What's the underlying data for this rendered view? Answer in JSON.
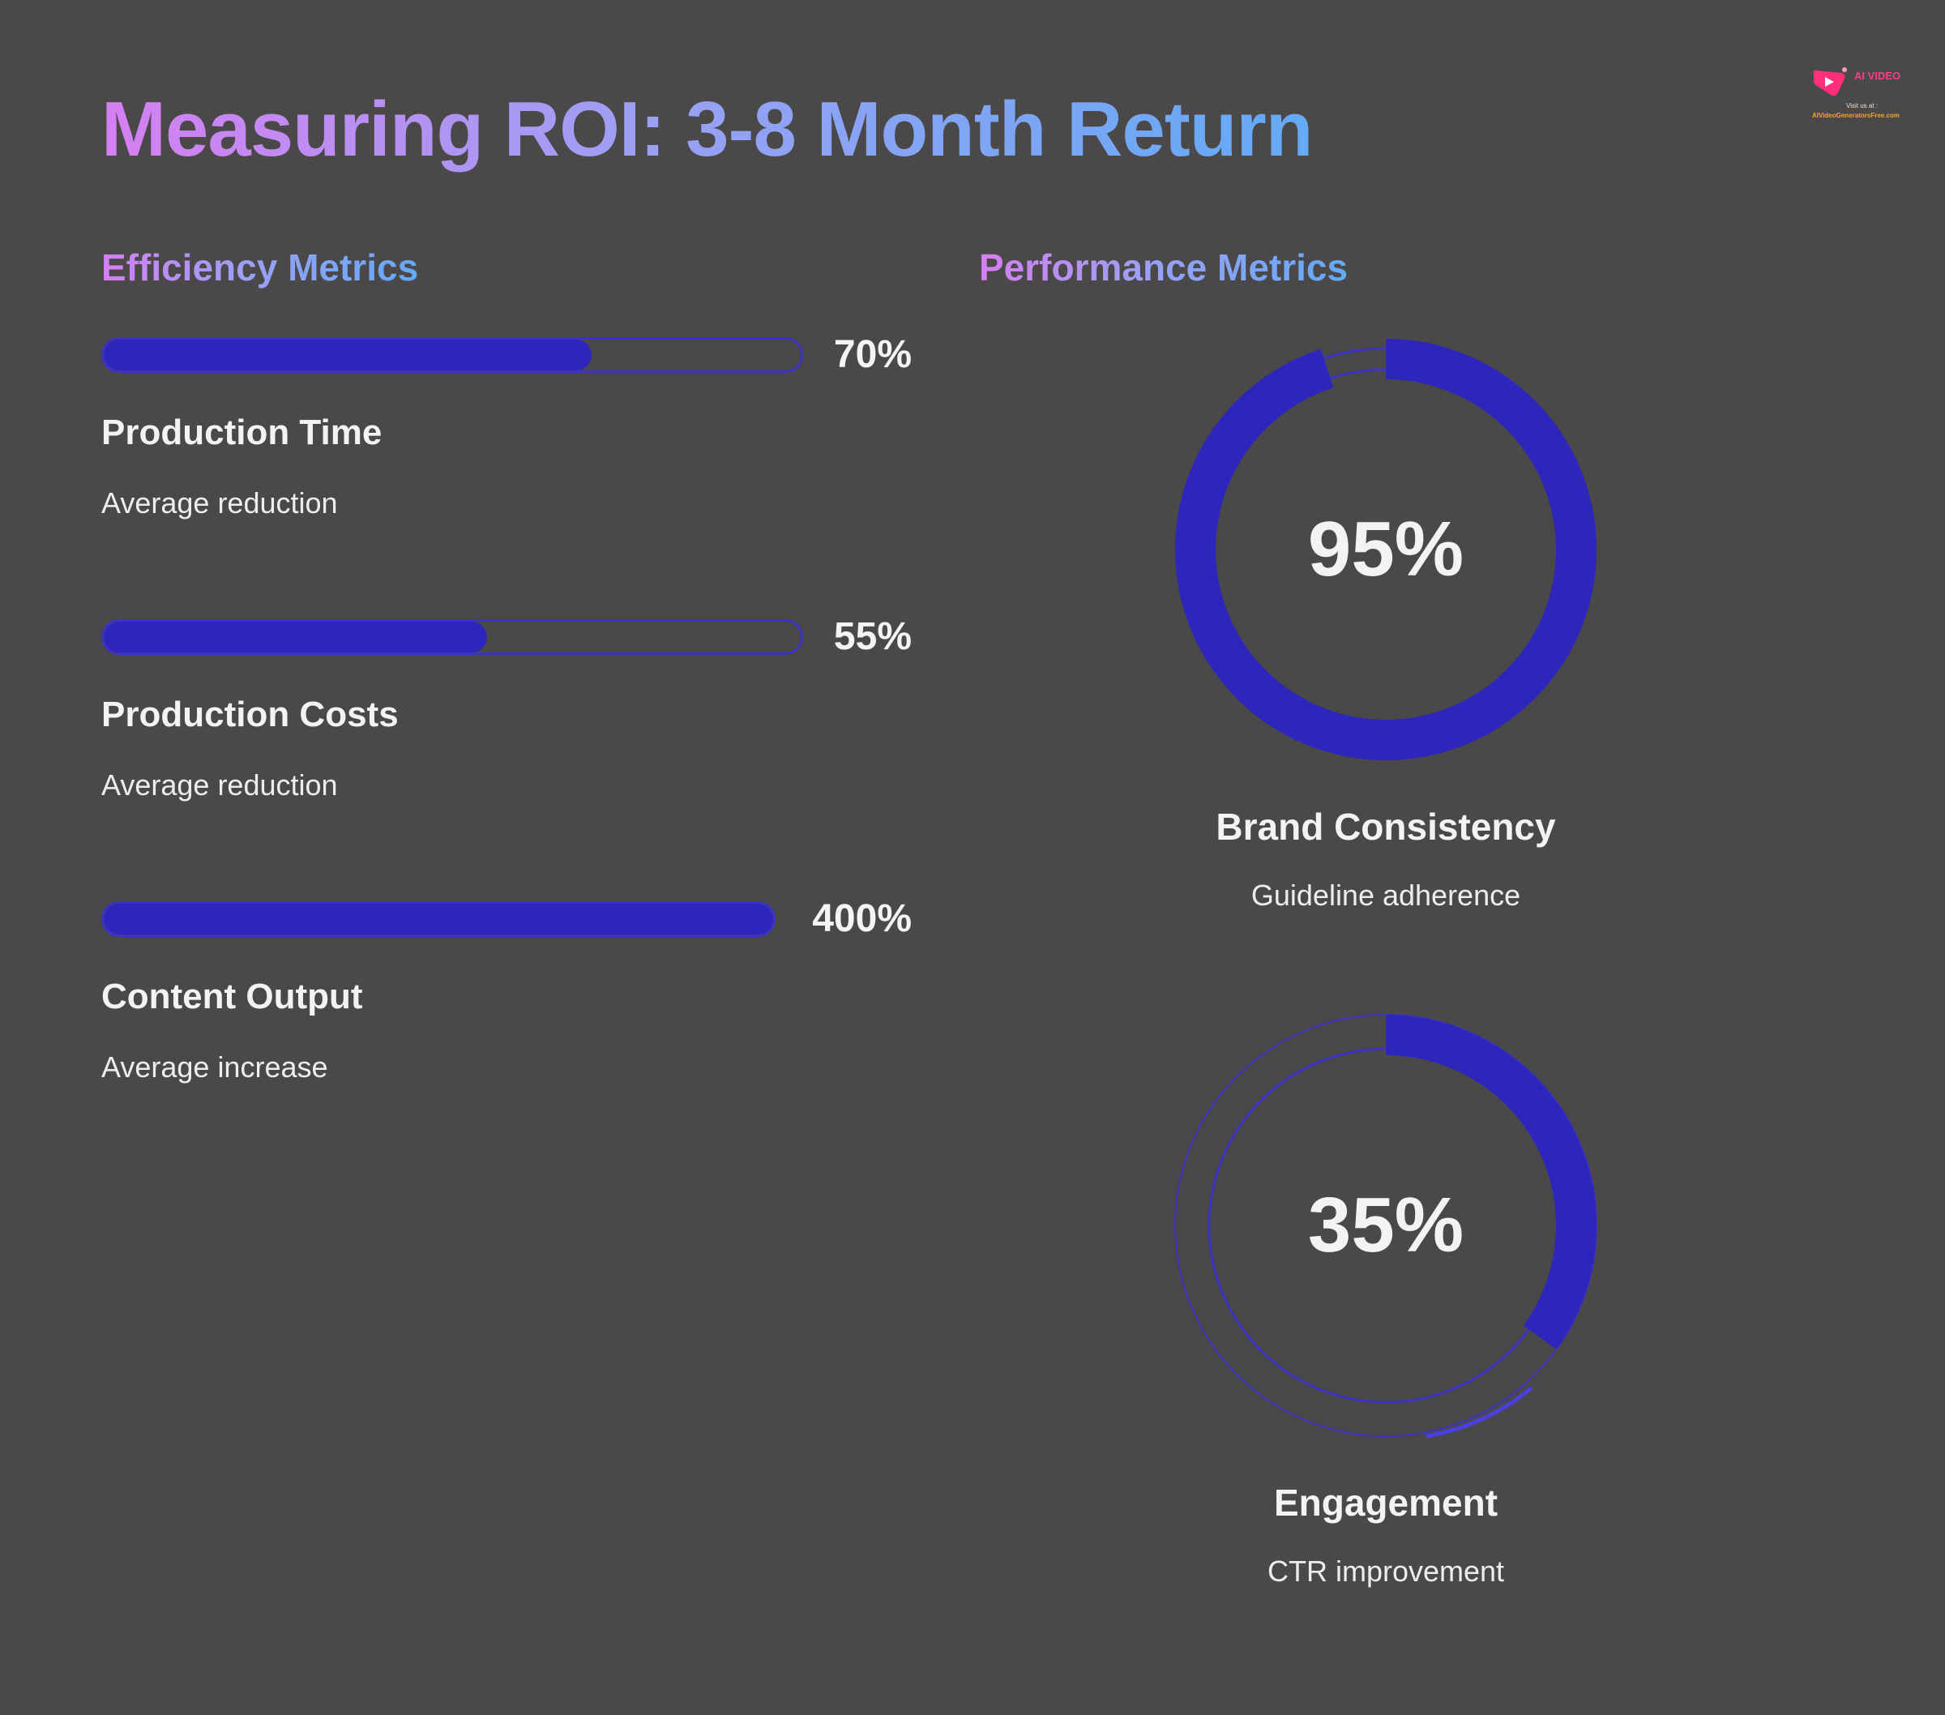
{
  "title": "Measuring ROI: 3-8 Month Return",
  "logo": {
    "brand": "AI VIDEO",
    "visit": "Visit us at :",
    "site": "AIVideoGeneratorsFree.com"
  },
  "efficiency": {
    "heading": "Efficiency Metrics",
    "items": [
      {
        "value_text": "70%",
        "fraction": 0.7,
        "label": "Production Time",
        "sub": "Average reduction"
      },
      {
        "value_text": "55%",
        "fraction": 0.55,
        "label": "Production Costs",
        "sub": "Average reduction"
      },
      {
        "value_text": "400%",
        "fraction": 1.0,
        "label": "Content Output",
        "sub": "Average increase"
      }
    ]
  },
  "performance": {
    "heading": "Performance Metrics",
    "items": [
      {
        "value_text": "95%",
        "fraction": 0.95,
        "label": "Brand Consistency",
        "sub": "Guideline adherence"
      },
      {
        "value_text": "35%",
        "fraction": 0.35,
        "label": "Engagement",
        "sub": "CTR improvement"
      }
    ]
  },
  "colors": {
    "background": "#4a4849",
    "bar_fill": "#2c26bd",
    "bar_border": "#3c33c4",
    "title_gradient_start": "#d57ff2",
    "title_gradient_end": "#63aaf5"
  }
}
